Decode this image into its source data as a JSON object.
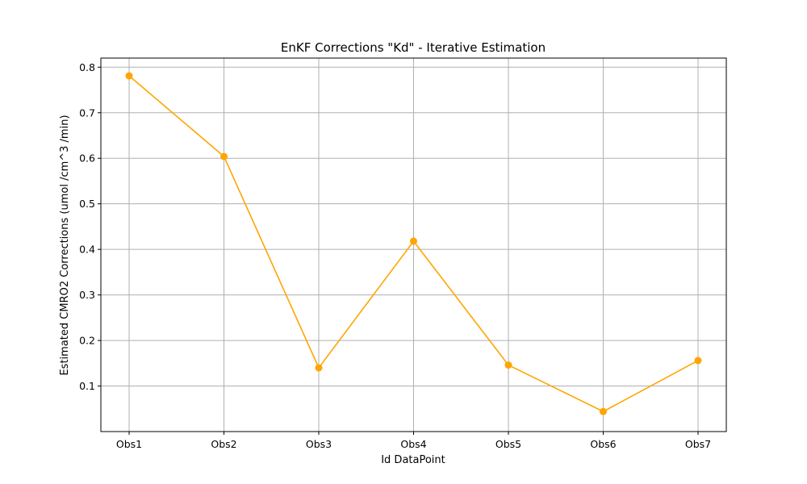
{
  "chart_data": {
    "type": "line",
    "title": "EnKF Corrections \"Kd\" - Iterative Estimation",
    "xlabel": "Id DataPoint",
    "ylabel": "Estimated CMRO2 Corrections (umol /cm^3 /min)",
    "categories": [
      "Obs1",
      "Obs2",
      "Obs3",
      "Obs4",
      "Obs5",
      "Obs6",
      "Obs7"
    ],
    "series": [
      {
        "values": [
          0.781,
          0.604,
          0.14,
          0.418,
          0.146,
          0.044,
          0.156
        ],
        "color": "#FFA500",
        "marker": "circle"
      }
    ],
    "ylim": [
      0.0,
      0.82
    ],
    "yticks": [
      0.1,
      0.2,
      0.3,
      0.4,
      0.5,
      0.6,
      0.7,
      0.8
    ],
    "ytick_labels": [
      "0.1",
      "0.2",
      "0.3",
      "0.4",
      "0.5",
      "0.6",
      "0.7",
      "0.8"
    ],
    "grid": true,
    "legend": "none"
  }
}
